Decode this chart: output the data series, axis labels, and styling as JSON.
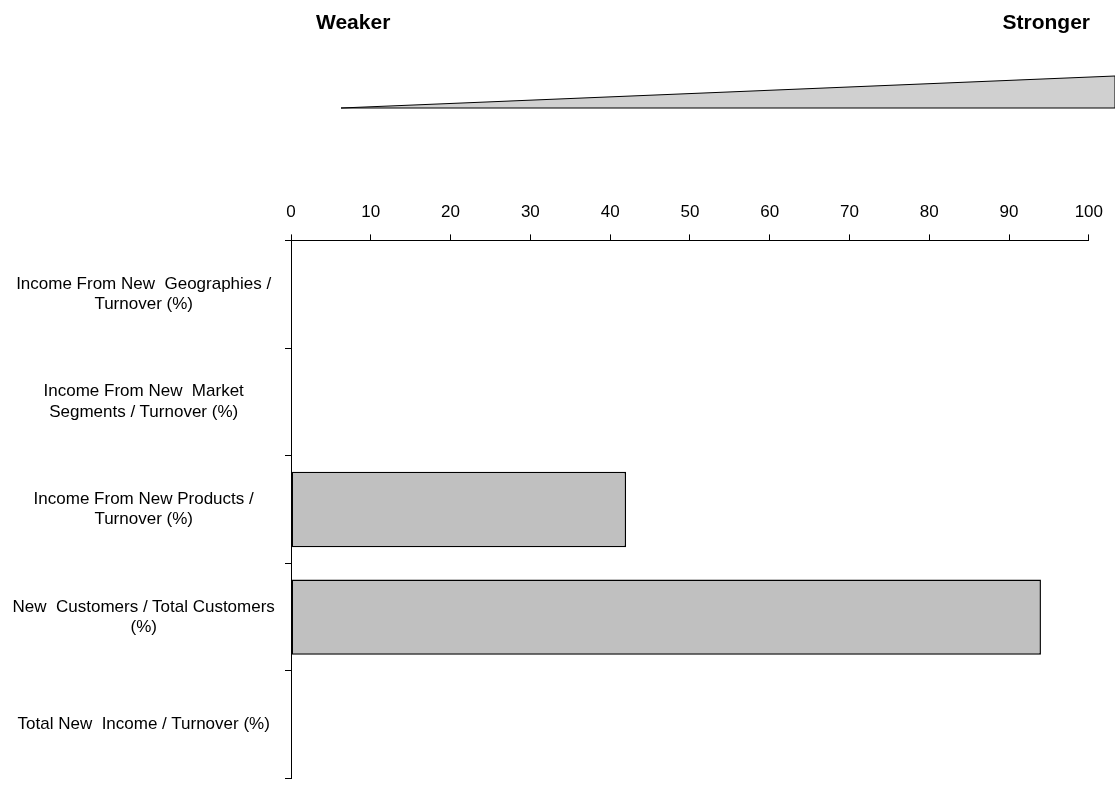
{
  "chart_data": {
    "type": "bar",
    "orientation": "horizontal",
    "categories": [
      "Income From New  Geographies / Turnover (%)",
      "Income From New  Market Segments / Turnover (%)",
      "Income From New Products / Turnover (%)",
      "New  Customers / Total Customers (%)",
      "Total New  Income / Turnover (%)"
    ],
    "values": [
      null,
      null,
      42,
      94,
      null
    ],
    "color": "#c0c0c0",
    "xlim": [
      0,
      100
    ],
    "xticks": [
      0,
      10,
      20,
      30,
      40,
      50,
      60,
      70,
      80,
      90,
      100
    ],
    "grid": false,
    "legend": false,
    "annotations": [
      "Weaker",
      "Stronger"
    ]
  }
}
